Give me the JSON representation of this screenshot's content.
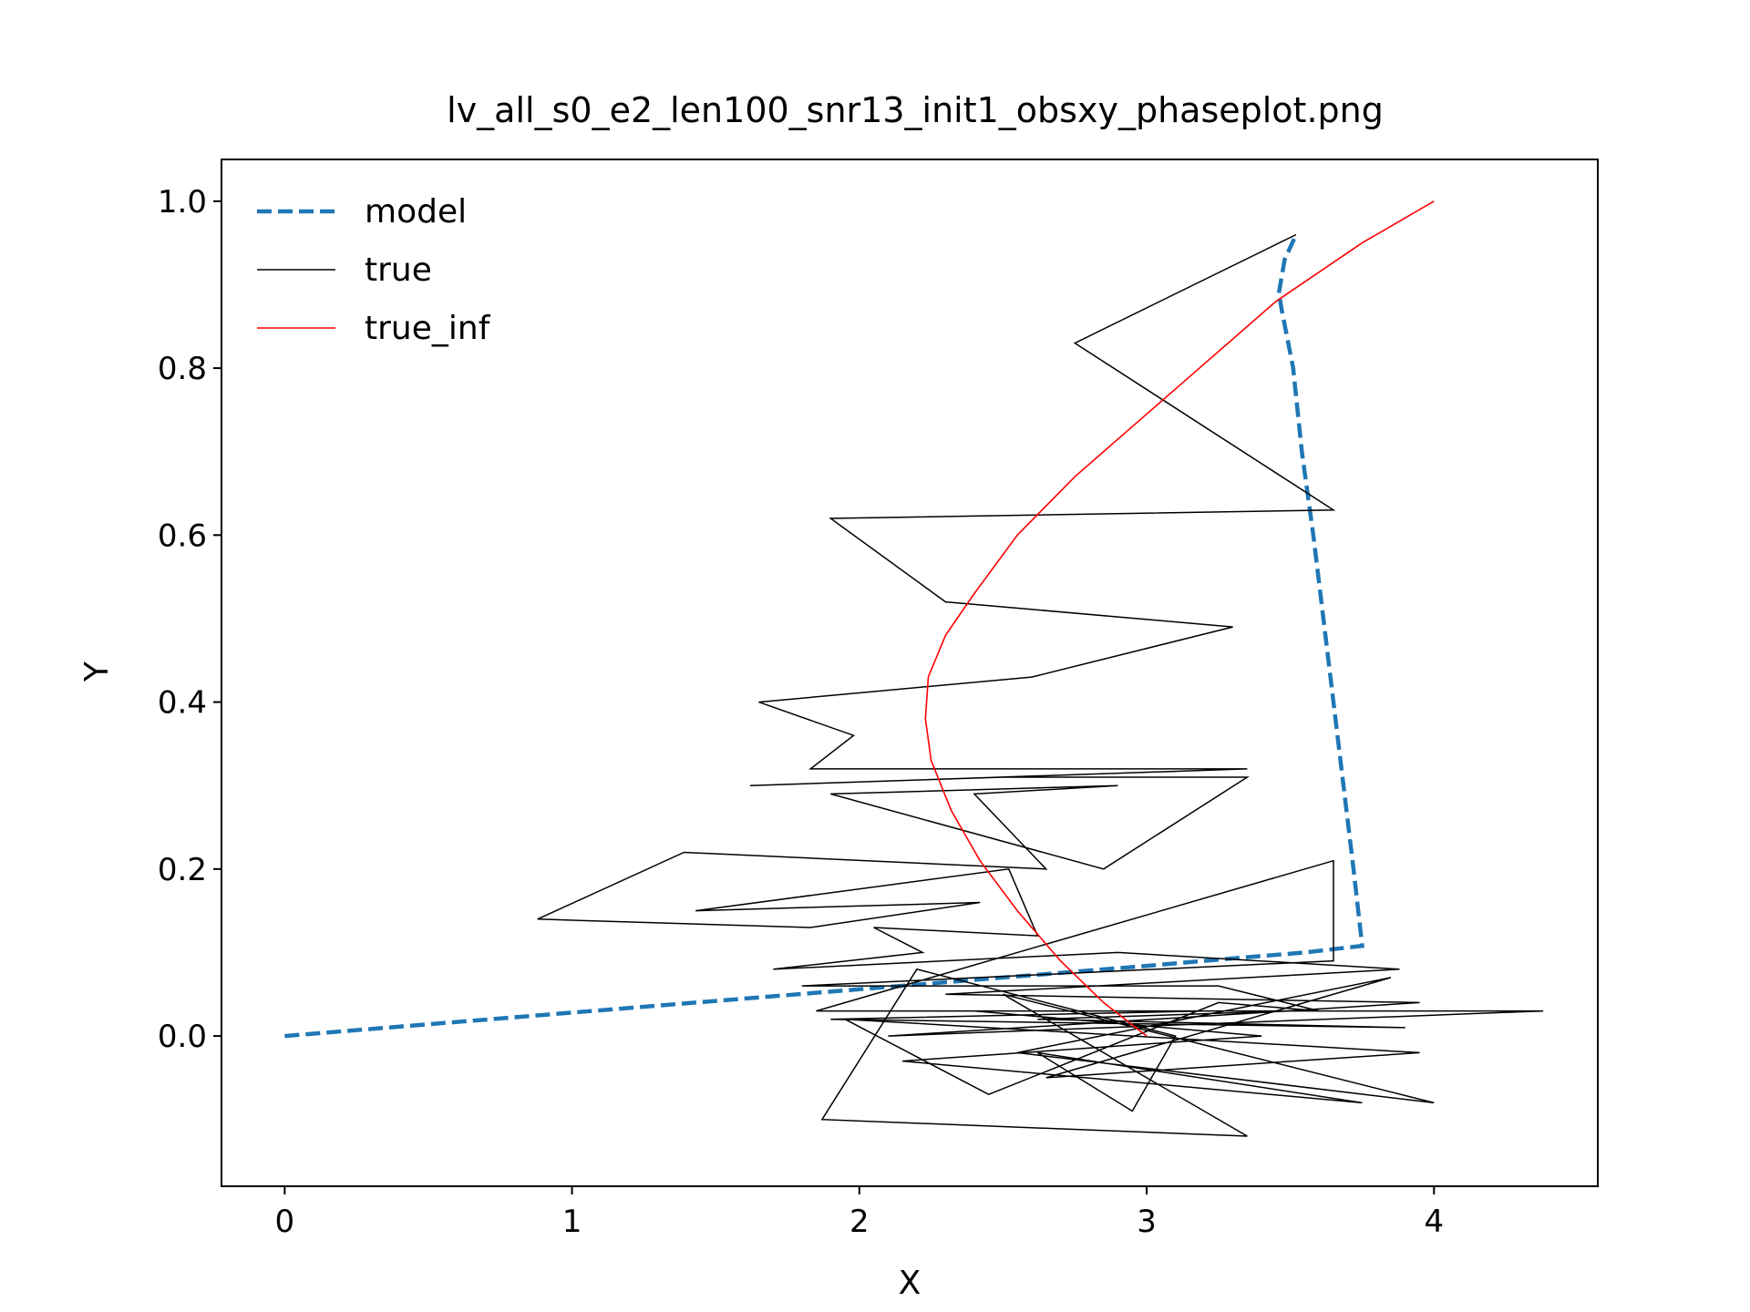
{
  "chart_data": {
    "type": "line",
    "title": "lv_all_s0_e2_len100_snr13_init1_obsxy_phaseplot.png",
    "xlabel": "X",
    "ylabel": "Y",
    "xlim": [
      -0.22,
      4.57
    ],
    "ylim": [
      -0.18,
      1.05
    ],
    "xticks": [
      0,
      1,
      2,
      3,
      4
    ],
    "xtick_labels": [
      "0",
      "1",
      "2",
      "3",
      "4"
    ],
    "yticks": [
      0.0,
      0.2,
      0.4,
      0.6,
      0.8,
      1.0
    ],
    "ytick_labels": [
      "0.0",
      "0.2",
      "0.4",
      "0.6",
      "0.8",
      "1.0"
    ],
    "grid": false,
    "legend_position": "top-left",
    "series": [
      {
        "name": "model",
        "color": "#1f77b4",
        "style": "dashed",
        "x": [
          0.0,
          0.5,
          1.0,
          1.5,
          2.0,
          2.5,
          3.0,
          3.3,
          3.55,
          3.75,
          3.72,
          3.65,
          3.58,
          3.54,
          3.51,
          3.47,
          3.46,
          3.48,
          3.52
        ],
        "y": [
          0.0,
          0.014,
          0.028,
          0.042,
          0.056,
          0.07,
          0.084,
          0.093,
          0.1,
          0.108,
          0.2,
          0.4,
          0.6,
          0.7,
          0.8,
          0.87,
          0.89,
          0.93,
          0.96
        ]
      },
      {
        "name": "true",
        "color": "#000000",
        "style": "solid",
        "x": [
          3.52,
          2.75,
          3.65,
          1.9,
          2.3,
          3.3,
          2.6,
          1.65,
          1.98,
          1.83,
          3.35,
          1.62,
          2.5,
          3.35,
          2.85,
          1.9,
          2.9,
          2.4,
          2.65,
          1.39,
          0.88,
          1.83,
          2.42,
          1.43,
          2.52,
          2.62,
          2.05,
          2.22,
          1.7,
          2.9,
          3.88,
          2.3,
          3.95,
          2.1,
          4.38,
          3.2,
          1.9,
          3.9,
          2.62,
          3.5,
          1.85,
          3.65,
          3.65,
          1.8,
          3.25,
          3.6,
          3.25,
          2.45,
          1.95,
          3.95,
          2.65,
          3.85,
          2.55,
          4.0,
          2.5,
          3.35,
          1.87,
          2.2,
          3.1,
          2.95,
          2.62,
          3.75,
          2.15,
          3.4,
          2.4
        ],
        "y": [
          0.96,
          0.83,
          0.63,
          0.62,
          0.52,
          0.49,
          0.43,
          0.4,
          0.36,
          0.32,
          0.32,
          0.3,
          0.31,
          0.31,
          0.2,
          0.29,
          0.3,
          0.29,
          0.2,
          0.22,
          0.14,
          0.13,
          0.16,
          0.15,
          0.2,
          0.12,
          0.13,
          0.1,
          0.08,
          0.1,
          0.08,
          0.05,
          0.04,
          0.0,
          0.03,
          0.03,
          0.02,
          0.01,
          0.02,
          0.03,
          0.03,
          0.21,
          0.09,
          0.06,
          0.06,
          0.03,
          0.04,
          -0.07,
          0.02,
          -0.02,
          -0.05,
          0.07,
          -0.02,
          -0.08,
          0.05,
          -0.12,
          -0.1,
          0.08,
          0.0,
          -0.09,
          -0.02,
          -0.08,
          -0.03,
          0.0,
          0.03
        ]
      },
      {
        "name": "true_inf",
        "color": "#ff0000",
        "style": "solid",
        "x": [
          4.0,
          3.75,
          3.45,
          3.15,
          2.95,
          2.75,
          2.55,
          2.4,
          2.3,
          2.24,
          2.23,
          2.25,
          2.32,
          2.42,
          2.55,
          2.7,
          2.85,
          3.0
        ],
        "y": [
          1.0,
          0.95,
          0.88,
          0.79,
          0.73,
          0.67,
          0.6,
          0.53,
          0.48,
          0.43,
          0.38,
          0.33,
          0.27,
          0.21,
          0.15,
          0.09,
          0.04,
          0.0
        ]
      }
    ]
  }
}
